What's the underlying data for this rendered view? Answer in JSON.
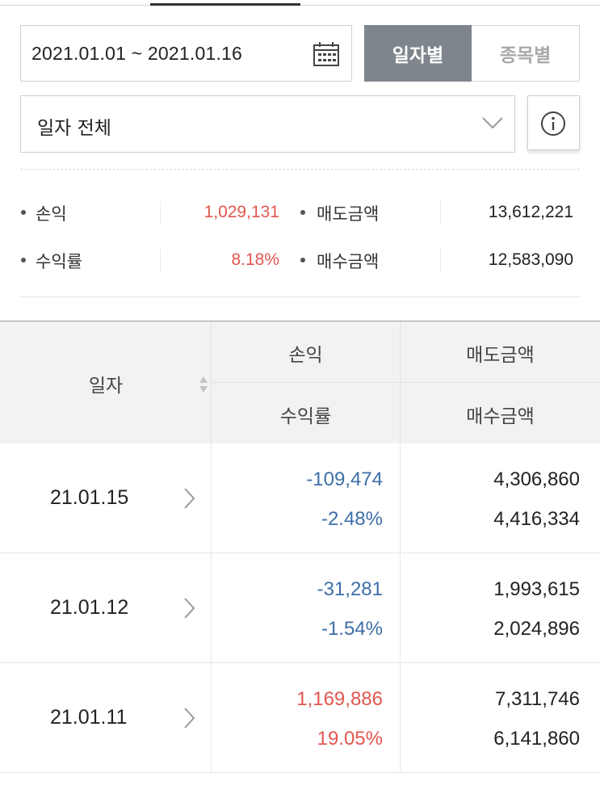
{
  "filter": {
    "date_range": "2021.01.01 ~ 2021.01.16",
    "view_toggle": {
      "active": "일자별",
      "inactive": "종목별"
    },
    "date_select": "일자 전체"
  },
  "summary": {
    "rows": [
      {
        "label1": "손익",
        "value1": "1,029,131",
        "label2": "매도금액",
        "value2": "13,612,221"
      },
      {
        "label1": "수익률",
        "value1": "8.18%",
        "label2": "매수금액",
        "value2": "12,583,090"
      }
    ]
  },
  "table": {
    "headers": {
      "date": "일자",
      "profit": "손익",
      "return_rate": "수익률",
      "sell_amount": "매도금액",
      "buy_amount": "매수금액"
    },
    "rows": [
      {
        "date": "21.01.15",
        "profit": "-109,474",
        "rate": "-2.48%",
        "sell": "4,306,860",
        "buy": "4,416,334",
        "trend": "negative"
      },
      {
        "date": "21.01.12",
        "profit": "-31,281",
        "rate": "-1.54%",
        "sell": "1,993,615",
        "buy": "2,024,896",
        "trend": "negative"
      },
      {
        "date": "21.01.11",
        "profit": "1,169,886",
        "rate": "19.05%",
        "sell": "7,311,746",
        "buy": "6,141,860",
        "trend": "positive"
      }
    ]
  },
  "colors": {
    "positive": "#e2564f",
    "negative": "#3d6ea8",
    "toggle_active_bg": "#7e858c"
  },
  "icons": {
    "calendar": "calendar-icon",
    "dropdown": "chevron-down-icon",
    "info": "info-icon",
    "sort": "sort-icon",
    "row_arrow": "chevron-right-icon"
  }
}
